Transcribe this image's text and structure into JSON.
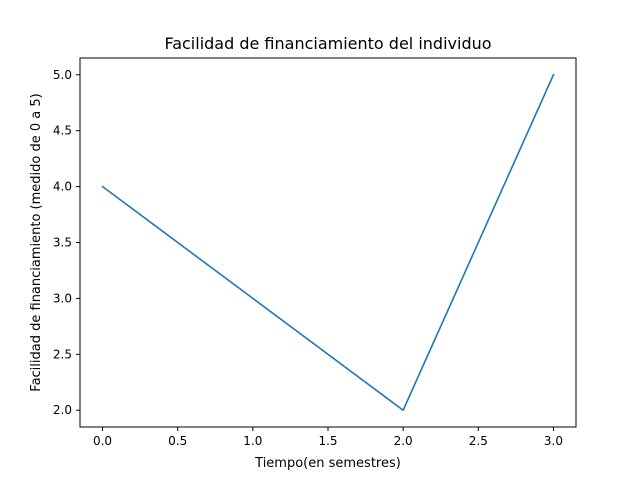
{
  "chart_data": {
    "type": "line",
    "title": "Facilidad de financiamiento del individuo",
    "xlabel": "Tiempo(en semestres)",
    "ylabel": "Facilidad de financiamiento (medido de 0 a 5)",
    "xlim": [
      -0.15,
      3.15
    ],
    "ylim": [
      1.85,
      5.15
    ],
    "xticks": [
      0.0,
      0.5,
      1.0,
      1.5,
      2.0,
      2.5,
      3.0
    ],
    "xtick_labels": [
      "0.0",
      "0.5",
      "1.0",
      "1.5",
      "2.0",
      "2.5",
      "3.0"
    ],
    "yticks": [
      2.0,
      2.5,
      3.0,
      3.5,
      4.0,
      4.5,
      5.0
    ],
    "ytick_labels": [
      "2.0",
      "2.5",
      "3.0",
      "3.5",
      "4.0",
      "4.5",
      "5.0"
    ],
    "grid": false,
    "series": [
      {
        "x": [
          0,
          1,
          2,
          3
        ],
        "values": [
          4,
          3,
          2,
          5
        ],
        "color": "#1f77b4"
      }
    ]
  }
}
